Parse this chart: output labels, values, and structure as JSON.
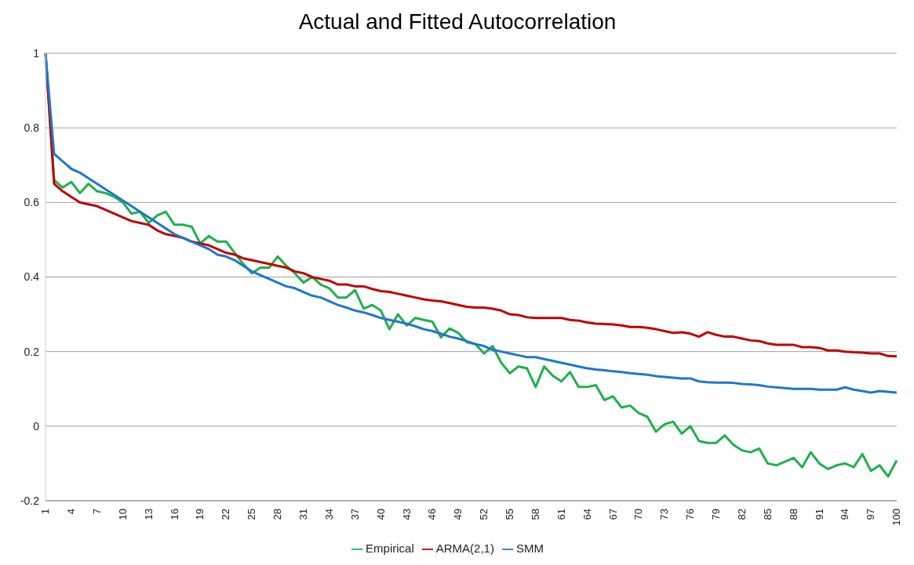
{
  "chart_data": {
    "type": "line",
    "title": "Actual and Fitted Autocorrelation",
    "categories": [
      "1",
      null,
      null,
      "4",
      null,
      null,
      "7",
      null,
      null,
      "10",
      null,
      null,
      "13",
      null,
      null,
      "16",
      null,
      null,
      "19",
      null,
      null,
      "22",
      null,
      null,
      "25",
      null,
      null,
      "28",
      null,
      null,
      "31",
      null,
      null,
      "34",
      null,
      null,
      "37",
      null,
      null,
      "40",
      null,
      null,
      "43",
      null,
      null,
      "46",
      null,
      null,
      "49",
      null,
      null,
      "52",
      null,
      null,
      "55",
      null,
      null,
      "58",
      null,
      null,
      "61",
      null,
      null,
      "64",
      null,
      null,
      "67",
      null,
      null,
      "70",
      null,
      null,
      "73",
      null,
      null,
      "76",
      null,
      null,
      "79",
      null,
      null,
      "82",
      null,
      null,
      "85",
      null,
      null,
      "88",
      null,
      null,
      "91",
      null,
      null,
      "94",
      null,
      null,
      "97",
      null,
      null,
      "100"
    ],
    "series": [
      {
        "name": "Empirical",
        "color": "#1fb04b",
        "values": [
          1.0,
          0.66,
          0.64,
          0.655,
          0.625,
          0.65,
          0.63,
          0.625,
          0.615,
          0.6,
          0.57,
          0.575,
          0.545,
          0.565,
          0.575,
          0.54,
          0.54,
          0.535,
          0.49,
          0.51,
          0.495,
          0.495,
          0.465,
          0.435,
          0.41,
          0.425,
          0.425,
          0.455,
          0.43,
          0.41,
          0.385,
          0.4,
          0.38,
          0.37,
          0.345,
          0.345,
          0.365,
          0.315,
          0.325,
          0.31,
          0.26,
          0.3,
          0.27,
          0.29,
          0.285,
          0.28,
          0.238,
          0.262,
          0.25,
          0.225,
          0.22,
          0.195,
          0.215,
          0.17,
          0.142,
          0.16,
          0.155,
          0.105,
          0.16,
          0.135,
          0.12,
          0.145,
          0.105,
          0.105,
          0.11,
          0.07,
          0.08,
          0.05,
          0.055,
          0.035,
          0.025,
          -0.015,
          0.005,
          0.012,
          -0.02,
          0.0,
          -0.04,
          -0.045,
          -0.045,
          -0.025,
          -0.05,
          -0.065,
          -0.07,
          -0.06,
          -0.1,
          -0.105,
          -0.095,
          -0.085,
          -0.11,
          -0.07,
          -0.1,
          -0.115,
          -0.105,
          -0.1,
          -0.11,
          -0.075,
          -0.12,
          -0.105,
          -0.135,
          -0.092
        ]
      },
      {
        "name": "ARMA(2,1)",
        "color": "#c00000",
        "values": [
          1.0,
          0.65,
          0.63,
          0.615,
          0.6,
          0.595,
          0.59,
          0.58,
          0.57,
          0.56,
          0.55,
          0.545,
          0.54,
          0.525,
          0.515,
          0.51,
          0.505,
          0.495,
          0.49,
          0.485,
          0.475,
          0.465,
          0.46,
          0.45,
          0.445,
          0.44,
          0.435,
          0.43,
          0.425,
          0.415,
          0.41,
          0.4,
          0.395,
          0.39,
          0.38,
          0.38,
          0.375,
          0.375,
          0.368,
          0.362,
          0.36,
          0.355,
          0.35,
          0.345,
          0.34,
          0.337,
          0.335,
          0.33,
          0.325,
          0.32,
          0.318,
          0.318,
          0.315,
          0.31,
          0.3,
          0.298,
          0.292,
          0.29,
          0.29,
          0.29,
          0.29,
          0.285,
          0.283,
          0.278,
          0.275,
          0.274,
          0.273,
          0.27,
          0.266,
          0.266,
          0.264,
          0.26,
          0.255,
          0.25,
          0.252,
          0.248,
          0.24,
          0.252,
          0.245,
          0.24,
          0.24,
          0.235,
          0.23,
          0.228,
          0.222,
          0.218,
          0.218,
          0.218,
          0.212,
          0.212,
          0.21,
          0.203,
          0.203,
          0.2,
          0.198,
          0.197,
          0.195,
          0.195,
          0.188,
          0.187
        ]
      },
      {
        "name": "SMM",
        "color": "#1f77c9",
        "values": [
          1.0,
          0.73,
          0.71,
          0.69,
          0.68,
          0.665,
          0.65,
          0.635,
          0.62,
          0.605,
          0.59,
          0.575,
          0.56,
          0.545,
          0.53,
          0.515,
          0.505,
          0.495,
          0.485,
          0.475,
          0.46,
          0.455,
          0.445,
          0.43,
          0.415,
          0.405,
          0.395,
          0.385,
          0.375,
          0.37,
          0.36,
          0.35,
          0.345,
          0.335,
          0.325,
          0.318,
          0.31,
          0.305,
          0.298,
          0.29,
          0.285,
          0.28,
          0.275,
          0.268,
          0.26,
          0.255,
          0.248,
          0.24,
          0.235,
          0.228,
          0.22,
          0.215,
          0.205,
          0.2,
          0.195,
          0.19,
          0.185,
          0.185,
          0.18,
          0.175,
          0.17,
          0.165,
          0.16,
          0.155,
          0.152,
          0.15,
          0.147,
          0.145,
          0.142,
          0.14,
          0.138,
          0.134,
          0.132,
          0.13,
          0.128,
          0.128,
          0.12,
          0.118,
          0.117,
          0.117,
          0.116,
          0.113,
          0.112,
          0.11,
          0.106,
          0.104,
          0.102,
          0.1,
          0.1,
          0.1,
          0.098,
          0.098,
          0.098,
          0.104,
          0.098,
          0.094,
          0.09,
          0.094,
          0.092,
          0.09
        ]
      }
    ],
    "ylim": [
      -0.2,
      1
    ],
    "yticks": [
      -0.2,
      0,
      0.2,
      0.4,
      0.6,
      0.8,
      1
    ],
    "grid": "y",
    "legend": "bottom"
  }
}
